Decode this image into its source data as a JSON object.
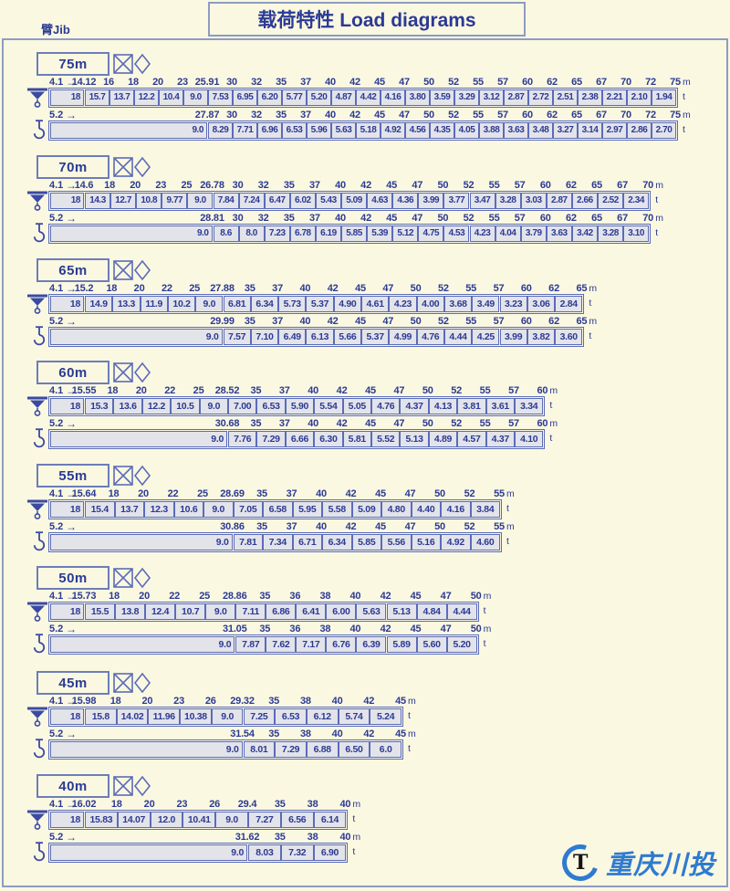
{
  "title": "载荷特性 Load diagrams",
  "jib_label": "臂Jib",
  "units": {
    "radius": "m",
    "load": "t"
  },
  "arrow_glyph": "→",
  "logo": {
    "symbol": "T",
    "text": "重庆川投"
  },
  "colors": {
    "background": "#fbf8e1",
    "frame": "#8d9cc4",
    "text": "#2b3a94",
    "bar_border": "#5a6cb8",
    "bar_fill": "#e3e3ea",
    "logo_blue": "#2e7bd0"
  },
  "chart_data": {
    "type": "table",
    "title": "载荷特性 Load diagrams",
    "x_label": "working radius",
    "x_unit": "m",
    "y_label": "max load",
    "y_unit": "t",
    "tables": [
      {
        "jib": "75m",
        "rows": [
          {
            "min_radius": "4.1",
            "radii_m": [
              "14.12",
              "16",
              "18",
              "20",
              "23",
              "25.91",
              "30",
              "32",
              "35",
              "37",
              "40",
              "42",
              "45",
              "47",
              "50",
              "52",
              "55",
              "57",
              "60",
              "62",
              "65",
              "67",
              "70",
              "72",
              "75"
            ],
            "loads_t": [
              "18",
              "15.7",
              "13.7",
              "12.2",
              "10.4",
              "9.0",
              "7.53",
              "6.95",
              "6.20",
              "5.77",
              "5.20",
              "4.87",
              "4.42",
              "4.16",
              "3.80",
              "3.59",
              "3.29",
              "3.12",
              "2.87",
              "2.72",
              "2.51",
              "2.38",
              "2.21",
              "2.10",
              "1.94"
            ]
          },
          {
            "min_radius": "5.2",
            "radii_m": [
              "27.87",
              "30",
              "32",
              "35",
              "37",
              "40",
              "42",
              "45",
              "47",
              "50",
              "52",
              "55",
              "57",
              "60",
              "62",
              "65",
              "67",
              "70",
              "72",
              "75"
            ],
            "loads_t": [
              "9.0",
              "8.29",
              "7.71",
              "6.96",
              "6.53",
              "5.96",
              "5.63",
              "5.18",
              "4.92",
              "4.56",
              "4.35",
              "4.05",
              "3.88",
              "3.63",
              "3.48",
              "3.27",
              "3.14",
              "2.97",
              "2.86",
              "2.70"
            ]
          }
        ]
      },
      {
        "jib": "70m",
        "rows": [
          {
            "min_radius": "4.1",
            "radii_m": [
              "14.6",
              "18",
              "20",
              "23",
              "25",
              "26.78",
              "30",
              "32",
              "35",
              "37",
              "40",
              "42",
              "45",
              "47",
              "50",
              "52",
              "55",
              "57",
              "60",
              "62",
              "65",
              "67",
              "70"
            ],
            "loads_t": [
              "18",
              "14.3",
              "12.7",
              "10.8",
              "9.77",
              "9.0",
              "7.84",
              "7.24",
              "6.47",
              "6.02",
              "5.43",
              "5.09",
              "4.63",
              "4.36",
              "3.99",
              "3.77",
              "3.47",
              "3.28",
              "3.03",
              "2.87",
              "2.66",
              "2.52",
              "2.34"
            ]
          },
          {
            "min_radius": "5.2",
            "radii_m": [
              "28.81",
              "30",
              "32",
              "35",
              "37",
              "40",
              "42",
              "45",
              "47",
              "50",
              "52",
              "55",
              "57",
              "60",
              "62",
              "65",
              "67",
              "70"
            ],
            "loads_t": [
              "9.0",
              "8.6",
              "8.0",
              "7.23",
              "6.78",
              "6.19",
              "5.85",
              "5.39",
              "5.12",
              "4.75",
              "4.53",
              "4.23",
              "4.04",
              "3.79",
              "3.63",
              "3.42",
              "3.28",
              "3.10"
            ]
          }
        ]
      },
      {
        "jib": "65m",
        "rows": [
          {
            "min_radius": "4.1",
            "radii_m": [
              "15.2",
              "18",
              "20",
              "22",
              "25",
              "27.88",
              "35",
              "37",
              "40",
              "42",
              "45",
              "47",
              "50",
              "52",
              "55",
              "57",
              "60",
              "62",
              "65"
            ],
            "loads_t": [
              "18",
              "14.9",
              "13.3",
              "11.9",
              "10.2",
              "9.0",
              "6.81",
              "6.34",
              "5.73",
              "5.37",
              "4.90",
              "4.61",
              "4.23",
              "4.00",
              "3.68",
              "3.49",
              "3.23",
              "3.06",
              "2.84"
            ]
          },
          {
            "min_radius": "5.2",
            "radii_m": [
              "29.99",
              "35",
              "37",
              "40",
              "42",
              "45",
              "47",
              "50",
              "52",
              "55",
              "57",
              "60",
              "62",
              "65"
            ],
            "loads_t": [
              "9.0",
              "7.57",
              "7.10",
              "6.49",
              "6.13",
              "5.66",
              "5.37",
              "4.99",
              "4.76",
              "4.44",
              "4.25",
              "3.99",
              "3.82",
              "3.60"
            ]
          }
        ]
      },
      {
        "jib": "60m",
        "rows": [
          {
            "min_radius": "4.1",
            "radii_m": [
              "15.55",
              "18",
              "20",
              "22",
              "25",
              "28.52",
              "35",
              "37",
              "40",
              "42",
              "45",
              "47",
              "50",
              "52",
              "55",
              "57",
              "60"
            ],
            "loads_t": [
              "18",
              "15.3",
              "13.6",
              "12.2",
              "10.5",
              "9.0",
              "7.00",
              "6.53",
              "5.90",
              "5.54",
              "5.05",
              "4.76",
              "4.37",
              "4.13",
              "3.81",
              "3.61",
              "3.34"
            ]
          },
          {
            "min_radius": "5.2",
            "radii_m": [
              "30.68",
              "35",
              "37",
              "40",
              "42",
              "45",
              "47",
              "50",
              "52",
              "55",
              "57",
              "60"
            ],
            "loads_t": [
              "9.0",
              "7.76",
              "7.29",
              "6.66",
              "6.30",
              "5.81",
              "5.52",
              "5.13",
              "4.89",
              "4.57",
              "4.37",
              "4.10"
            ]
          }
        ]
      },
      {
        "jib": "55m",
        "rows": [
          {
            "min_radius": "4.1",
            "radii_m": [
              "15.64",
              "18",
              "20",
              "22",
              "25",
              "28.69",
              "35",
              "37",
              "40",
              "42",
              "45",
              "47",
              "50",
              "52",
              "55"
            ],
            "loads_t": [
              "18",
              "15.4",
              "13.7",
              "12.3",
              "10.6",
              "9.0",
              "7.05",
              "6.58",
              "5.95",
              "5.58",
              "5.09",
              "4.80",
              "4.40",
              "4.16",
              "3.84"
            ]
          },
          {
            "min_radius": "5.2",
            "radii_m": [
              "30.86",
              "35",
              "37",
              "40",
              "42",
              "45",
              "47",
              "50",
              "52",
              "55"
            ],
            "loads_t": [
              "9.0",
              "7.81",
              "7.34",
              "6.71",
              "6.34",
              "5.85",
              "5.56",
              "5.16",
              "4.92",
              "4.60"
            ]
          }
        ]
      },
      {
        "jib": "50m",
        "rows": [
          {
            "min_radius": "4.1",
            "radii_m": [
              "15.73",
              "18",
              "20",
              "22",
              "25",
              "28.86",
              "35",
              "36",
              "38",
              "40",
              "42",
              "45",
              "47",
              "50"
            ],
            "loads_t": [
              "18",
              "15.5",
              "13.8",
              "12.4",
              "10.7",
              "9.0",
              "7.11",
              "6.86",
              "6.41",
              "6.00",
              "5.63",
              "5.13",
              "4.84",
              "4.44"
            ]
          },
          {
            "min_radius": "5.2",
            "radii_m": [
              "31.05",
              "35",
              "36",
              "38",
              "40",
              "42",
              "45",
              "47",
              "50"
            ],
            "loads_t": [
              "9.0",
              "7.87",
              "7.62",
              "7.17",
              "6.76",
              "6.39",
              "5.89",
              "5.60",
              "5.20"
            ]
          }
        ]
      },
      {
        "jib": "45m",
        "rows": [
          {
            "min_radius": "4.1",
            "radii_m": [
              "15.98",
              "18",
              "20",
              "23",
              "26",
              "29.32",
              "35",
              "38",
              "40",
              "42",
              "45"
            ],
            "loads_t": [
              "18",
              "15.8",
              "14.02",
              "11.96",
              "10.38",
              "9.0",
              "7.25",
              "6.53",
              "6.12",
              "5.74",
              "5.24"
            ]
          },
          {
            "min_radius": "5.2",
            "radii_m": [
              "31.54",
              "35",
              "38",
              "40",
              "42",
              "45"
            ],
            "loads_t": [
              "9.0",
              "8.01",
              "7.29",
              "6.88",
              "6.50",
              "6.0"
            ]
          }
        ]
      },
      {
        "jib": "40m",
        "rows": [
          {
            "min_radius": "4.1",
            "radii_m": [
              "16.02",
              "18",
              "20",
              "23",
              "26",
              "29.4",
              "35",
              "38",
              "40"
            ],
            "loads_t": [
              "18",
              "15.83",
              "14.07",
              "12.0",
              "10.41",
              "9.0",
              "7.27",
              "6.56",
              "6.14"
            ]
          },
          {
            "min_radius": "5.2",
            "radii_m": [
              "31.62",
              "35",
              "38",
              "40"
            ],
            "loads_t": [
              "9.0",
              "8.03",
              "7.32",
              "6.90"
            ]
          }
        ]
      }
    ]
  }
}
